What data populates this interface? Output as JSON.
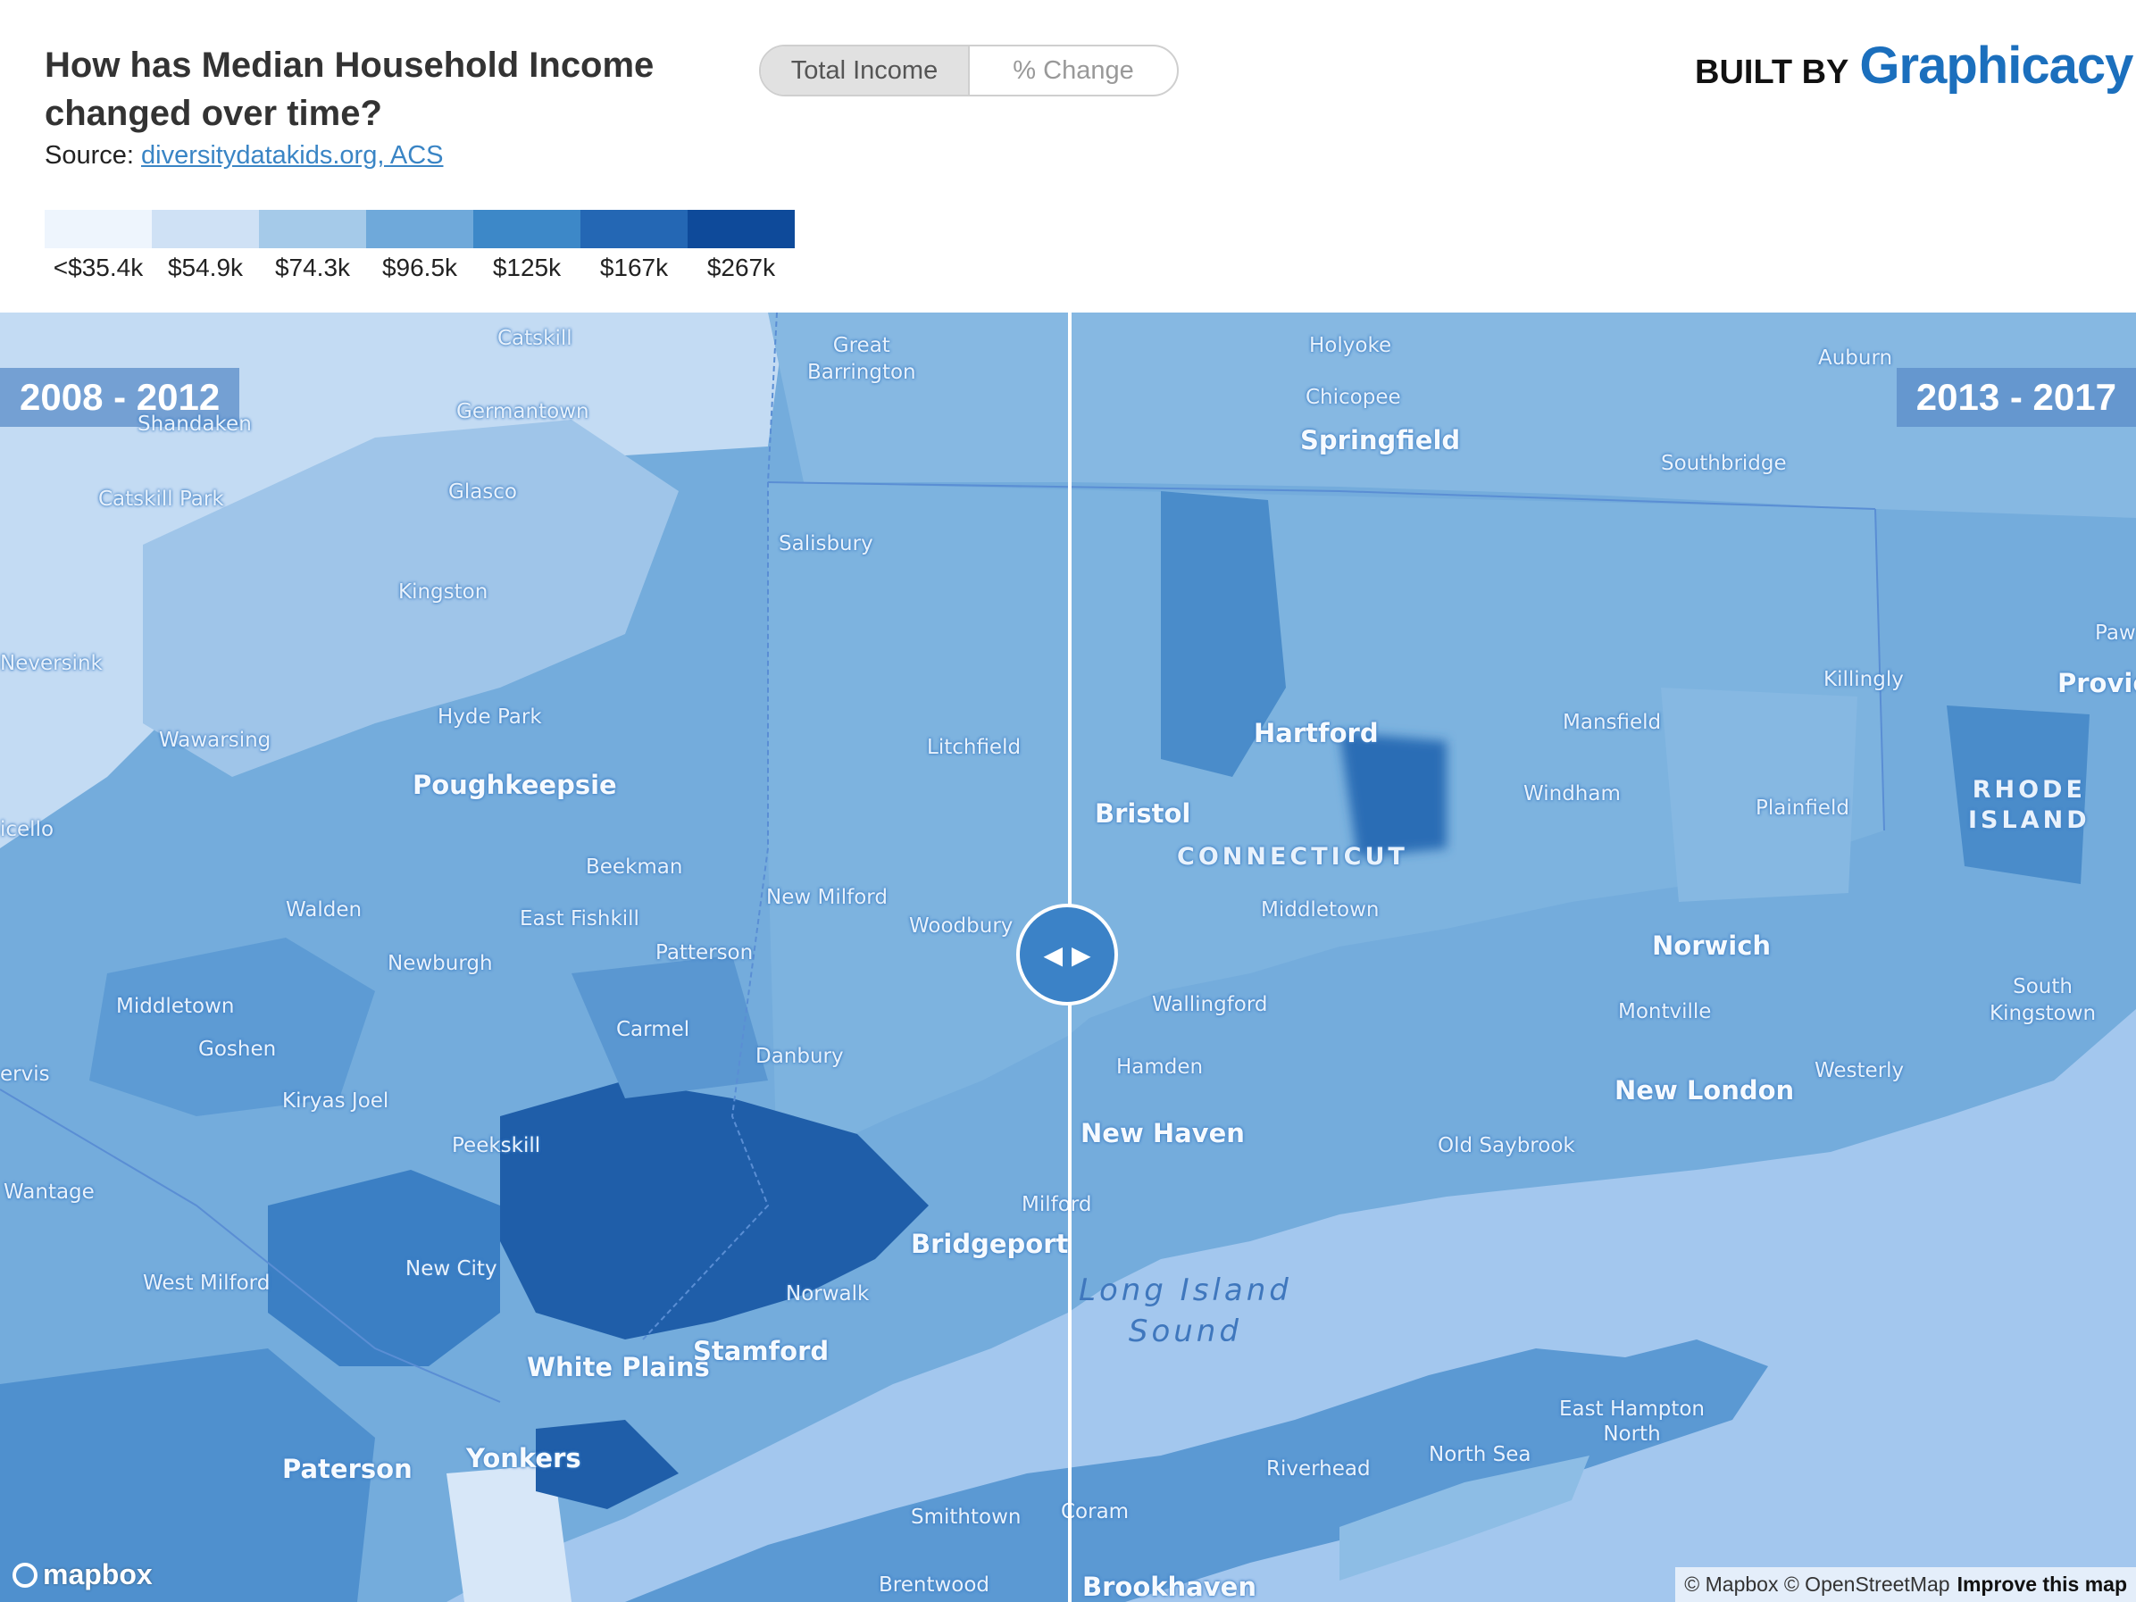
{
  "header": {
    "title": "How has Median Household Income changed over time?",
    "source_prefix": "Source: ",
    "source_link": "diversitydatakids.org, ACS"
  },
  "toggle": {
    "options": [
      {
        "label": "Total Income",
        "active": true
      },
      {
        "label": "% Change",
        "active": false
      }
    ]
  },
  "branding": {
    "built_by": "BUILT BY",
    "brand": "Graphicacy"
  },
  "legend": {
    "colors": [
      "#eef5fd",
      "#cfe1f5",
      "#a5cae9",
      "#6fa9da",
      "#3d88c8",
      "#2467b4",
      "#0e4a9a"
    ],
    "labels": [
      "<$35.4k",
      "$54.9k",
      "$74.3k",
      "$96.5k",
      "$125k",
      "$167k",
      "$267k"
    ]
  },
  "map": {
    "left_period": "2008 - 2012",
    "right_period": "2013 - 2017",
    "places": {
      "catskill": "Catskill",
      "great_barrington": "Great\nBarrington",
      "germantown": "Germantown",
      "shandaken": "Shandaken",
      "glasco": "Glasco",
      "catskill_park": "Catskill Park",
      "salisbury": "Salisbury",
      "kingston": "Kingston",
      "neversink": "Neversink",
      "hyde_park": "Hyde Park",
      "wawarsing": "Wawarsing",
      "litchfield": "Litchfield",
      "poughkeepsie": "Poughkeepsie",
      "icello": "icello",
      "beekman": "Beekman",
      "new_milford": "New Milford",
      "walden": "Walden",
      "east_fishkill": "East Fishkill",
      "woodbury": "Woodbury",
      "patterson": "Patterson",
      "newburgh": "Newburgh",
      "middletown_ny": "Middletown",
      "carmel": "Carmel",
      "goshen": "Goshen",
      "danbury": "Danbury",
      "ervis": "ervis",
      "kiryas_joel": "Kiryas Joel",
      "peekskill": "Peekskill",
      "wantage": "Wantage",
      "milford": "Milford",
      "bridgeport": "Bridgeport",
      "new_city": "New City",
      "west_milford": "West Milford",
      "norwalk": "Norwalk",
      "white_plains": "White Plains",
      "stamford": "Stamford",
      "paterson": "Paterson",
      "yonkers": "Yonkers",
      "smithtown": "Smithtown",
      "brentwood": "Brentwood",
      "holyoke": "Holyoke",
      "chicopee": "Chicopee",
      "springfield": "Springfield",
      "auburn": "Auburn",
      "southbridge": "Southbridge",
      "hartford": "Hartford",
      "killingly": "Killingly",
      "mansfield": "Mansfield",
      "bristol": "Bristol",
      "windham": "Windham",
      "plainfield": "Plainfield",
      "connecticut": "CONNECTICUT",
      "rhode_island": "RHODE\nISLAND",
      "middletown_ct": "Middletown",
      "norwich": "Norwich",
      "wallingford": "Wallingford",
      "montville": "Montville",
      "south_kingstown": "South\nKingstown",
      "hamden": "Hamden",
      "westerly": "Westerly",
      "new_london": "New London",
      "new_haven": "New Haven",
      "old_saybrook": "Old Saybrook",
      "long_island_sound": "Long Island\nSound",
      "east_hampton_north": "East Hampton\nNorth",
      "riverhead": "Riverhead",
      "north_sea": "North Sea",
      "coram": "Coram",
      "brookhaven": "Brookhaven",
      "paw": "Paw",
      "provic": "Provic"
    },
    "mapbox_logo": "mapbox",
    "attribution": "© Mapbox © OpenStreetMap",
    "improve": "Improve this map"
  }
}
